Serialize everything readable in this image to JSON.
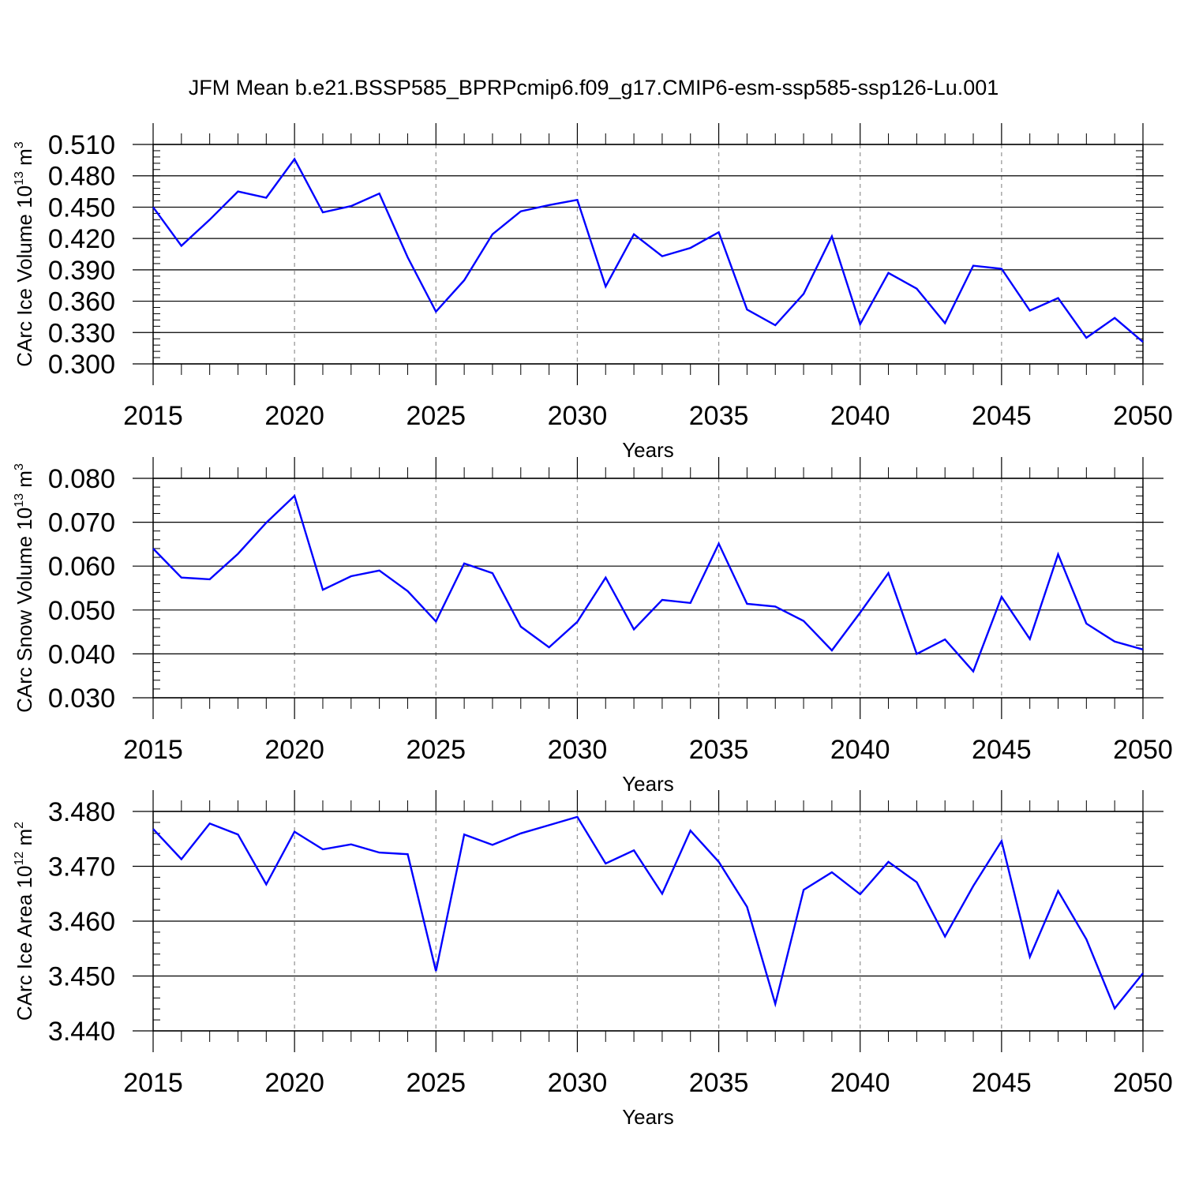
{
  "title": "JFM Mean b.e21.BSSP585_BPRPcmip6.f09_g17.CMIP6-esm-ssp585-ssp126-Lu.001",
  "colors": {
    "line": "#0000ff",
    "axis": "#000000",
    "grid": "#999999"
  },
  "chart_data": [
    {
      "type": "line",
      "xlabel": "Years",
      "ylabel": {
        "text": "CArc Ice Volume 10",
        "exp": "13",
        "unit": " m",
        "unit_exp": "3"
      },
      "xlim": [
        2015,
        2050
      ],
      "ylim": [
        0.3,
        0.51
      ],
      "xticks": [
        "2015",
        "2020",
        "2025",
        "2030",
        "2035",
        "2040",
        "2045",
        "2050"
      ],
      "yticks": [
        "0.300",
        "0.330",
        "0.360",
        "0.390",
        "0.420",
        "0.450",
        "0.480",
        "0.510"
      ],
      "grid": "vertical dashed at major x ticks",
      "x": [
        2015,
        2016,
        2017,
        2018,
        2019,
        2020,
        2021,
        2022,
        2023,
        2024,
        2025,
        2026,
        2027,
        2028,
        2029,
        2030,
        2031,
        2032,
        2033,
        2034,
        2035,
        2036,
        2037,
        2038,
        2039,
        2040,
        2041,
        2042,
        2043,
        2044,
        2045,
        2046,
        2047,
        2048,
        2049,
        2050
      ],
      "values": [
        0.45,
        0.413,
        0.438,
        0.465,
        0.459,
        0.496,
        0.445,
        0.451,
        0.463,
        0.402,
        0.35,
        0.38,
        0.424,
        0.446,
        0.452,
        0.457,
        0.374,
        0.424,
        0.403,
        0.411,
        0.426,
        0.352,
        0.337,
        0.367,
        0.422,
        0.338,
        0.387,
        0.372,
        0.339,
        0.394,
        0.391,
        0.351,
        0.363,
        0.325,
        0.344,
        0.321
      ]
    },
    {
      "type": "line",
      "xlabel": "Years",
      "ylabel": {
        "text": "CArc Snow Volume 10",
        "exp": "13",
        "unit": " m",
        "unit_exp": "3"
      },
      "xlim": [
        2015,
        2050
      ],
      "ylim": [
        0.03,
        0.08
      ],
      "xticks": [
        "2015",
        "2020",
        "2025",
        "2030",
        "2035",
        "2040",
        "2045",
        "2050"
      ],
      "yticks": [
        "0.030",
        "0.040",
        "0.050",
        "0.060",
        "0.070",
        "0.080"
      ],
      "grid": "vertical dashed at major x ticks",
      "x": [
        2015,
        2016,
        2017,
        2018,
        2019,
        2020,
        2021,
        2022,
        2023,
        2024,
        2025,
        2026,
        2027,
        2028,
        2029,
        2030,
        2031,
        2032,
        2033,
        2034,
        2035,
        2036,
        2037,
        2038,
        2039,
        2040,
        2041,
        2042,
        2043,
        2044,
        2045,
        2046,
        2047,
        2048,
        2049,
        2050
      ],
      "values": [
        0.064,
        0.0574,
        0.057,
        0.0628,
        0.0699,
        0.076,
        0.0546,
        0.0577,
        0.059,
        0.0543,
        0.0474,
        0.0606,
        0.0584,
        0.0462,
        0.0415,
        0.0473,
        0.0574,
        0.0456,
        0.0523,
        0.0516,
        0.0651,
        0.0514,
        0.0508,
        0.0475,
        0.0408,
        0.0494,
        0.0584,
        0.04,
        0.0433,
        0.036,
        0.053,
        0.0434,
        0.0627,
        0.0469,
        0.0428,
        0.041
      ]
    },
    {
      "type": "line",
      "xlabel": "Years",
      "ylabel": {
        "text": "CArc Ice Area 10",
        "exp": "12",
        "unit": " m",
        "unit_exp": "2"
      },
      "xlim": [
        2015,
        2050
      ],
      "ylim": [
        3.44,
        3.48
      ],
      "xticks": [
        "2015",
        "2020",
        "2025",
        "2030",
        "2035",
        "2040",
        "2045",
        "2050"
      ],
      "yticks": [
        "3.440",
        "3.450",
        "3.460",
        "3.470",
        "3.480"
      ],
      "grid": "vertical dashed at major x ticks",
      "x": [
        2015,
        2016,
        2017,
        2018,
        2019,
        2020,
        2021,
        2022,
        2023,
        2024,
        2025,
        2026,
        2027,
        2028,
        2029,
        2030,
        2031,
        2032,
        2033,
        2034,
        2035,
        2036,
        2037,
        2038,
        2039,
        2040,
        2041,
        2042,
        2043,
        2044,
        2045,
        2046,
        2047,
        2048,
        2049,
        2050
      ],
      "values": [
        3.4768,
        3.4713,
        3.4778,
        3.4758,
        3.4667,
        3.4763,
        3.4731,
        3.474,
        3.4725,
        3.4722,
        3.4509,
        3.4758,
        3.4739,
        3.476,
        3.4775,
        3.479,
        3.4705,
        3.4729,
        3.465,
        3.4765,
        3.4708,
        3.4626,
        3.4449,
        3.4657,
        3.4689,
        3.4649,
        3.4708,
        3.4671,
        3.4572,
        3.4664,
        3.4746,
        3.4535,
        3.4655,
        3.4567,
        3.4441,
        3.4505
      ]
    }
  ]
}
